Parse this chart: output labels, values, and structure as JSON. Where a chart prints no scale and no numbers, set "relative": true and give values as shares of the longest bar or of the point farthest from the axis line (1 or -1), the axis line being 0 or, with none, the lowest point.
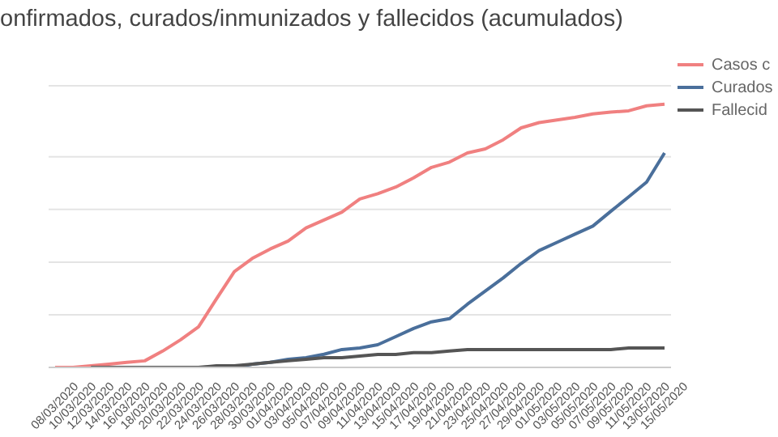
{
  "chart_data": {
    "type": "line",
    "title": "onfirmados, curados/inmunizados y fallecidos (acumulados)",
    "relative": true,
    "grid": "y",
    "legend": "top right",
    "marker": "none",
    "categories": [
      "08/03/2020",
      "10/03/2020",
      "12/03/2020",
      "14/03/2020",
      "16/03/2020",
      "18/03/2020",
      "20/03/2020",
      "22/03/2020",
      "24/03/2020",
      "26/03/2020",
      "28/03/2020",
      "30/03/2020",
      "01/04/2020",
      "03/04/2020",
      "05/04/2020",
      "07/04/2020",
      "09/04/2020",
      "11/04/2020",
      "13/04/2020",
      "15/04/2020",
      "17/04/2020",
      "19/04/2020",
      "21/04/2020",
      "23/04/2020",
      "25/04/2020",
      "27/04/2020",
      "29/04/2020",
      "01/05/2020",
      "03/05/2020",
      "05/05/2020",
      "07/05/2020",
      "09/05/2020",
      "11/05/2020",
      "13/05/2020",
      "15/05/2020"
    ],
    "series": [
      {
        "name": "Casos c",
        "color": "#f08080",
        "values": [
          0,
          0,
          0.006,
          0.012,
          0.019,
          0.025,
          0.062,
          0.105,
          0.154,
          0.26,
          0.364,
          0.414,
          0.45,
          0.48,
          0.53,
          0.56,
          0.59,
          0.64,
          0.66,
          0.685,
          0.72,
          0.76,
          0.78,
          0.815,
          0.83,
          0.865,
          0.91,
          0.93,
          0.94,
          0.95,
          0.963,
          0.97,
          0.975,
          0.994,
          1
        ]
      },
      {
        "name": "Curados",
        "color": "#4a6f9b",
        "values": [
          null,
          null,
          null,
          null,
          null,
          null,
          null,
          0,
          0,
          0,
          0,
          0.012,
          0.019,
          0.031,
          0.037,
          0.05,
          0.068,
          0.074,
          0.086,
          0.117,
          0.148,
          0.173,
          0.185,
          0.24,
          0.29,
          0.34,
          0.395,
          0.444,
          0.475,
          0.506,
          0.537,
          0.593,
          0.648,
          0.704,
          0.815
        ]
      },
      {
        "name": "Fallecid",
        "color": "#555555",
        "values": [
          null,
          null,
          0,
          0,
          0,
          0,
          0,
          0,
          0,
          0.006,
          0.006,
          0.012,
          0.019,
          0.025,
          0.031,
          0.037,
          0.037,
          0.043,
          0.049,
          0.049,
          0.056,
          0.056,
          0.062,
          0.068,
          0.068,
          0.068,
          0.068,
          0.068,
          0.068,
          0.068,
          0.068,
          0.068,
          0.074,
          0.074,
          0.074
        ]
      }
    ]
  }
}
